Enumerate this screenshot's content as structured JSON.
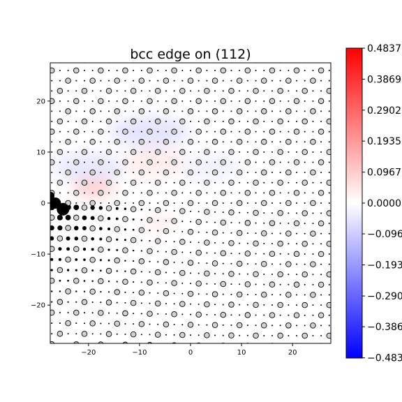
{
  "chart_data": {
    "type": "scatter",
    "title": "bcc edge on (112)",
    "xlim": [
      -27.5,
      27.5
    ],
    "ylim": [
      -27.5,
      27.5
    ],
    "x_ticks": [
      -20,
      -10,
      0,
      10,
      20
    ],
    "y_ticks": [
      -20,
      -10,
      0,
      10,
      20
    ],
    "x_tick_labels": [
      "−20",
      "−10",
      "0",
      "10",
      "20"
    ],
    "y_tick_labels": [
      "−20",
      "−10",
      "0",
      "10",
      "20"
    ],
    "grid": false,
    "lattice": {
      "row_spacing": 2.0,
      "column_spacing": 4.8,
      "open_circle_fill": "#d0d0d0",
      "small_dot_color": "#000000"
    },
    "dislocation_core": [
      -26.5,
      0.0
    ],
    "colorbar": {
      "cmap": "bwr",
      "min": -0.4837,
      "max": 0.4837,
      "ticks": [
        0.4837,
        0.3869,
        0.2902,
        0.1935,
        0.0967,
        0.0,
        -0.096,
        -0.193,
        -0.29,
        -0.386,
        -0.483
      ],
      "tick_labels": [
        "0.4837",
        "0.3869",
        "0.2902",
        "0.1935",
        "0.0967",
        "0.0000",
        "−0.096",
        "−0.193",
        "−0.290",
        "−0.386",
        "−0.483"
      ],
      "colors": {
        "max": "#ff0000",
        "mid": "#ffffff",
        "min": "#0000ff"
      }
    },
    "field_blobs": [
      {
        "x": -8,
        "y": 14,
        "rx": 8,
        "ry": 3,
        "value": -0.06
      },
      {
        "x": -20,
        "y": 7,
        "rx": 7,
        "ry": 3,
        "value": -0.05
      },
      {
        "x": 4,
        "y": 7,
        "rx": 6,
        "ry": 2.5,
        "value": -0.03
      },
      {
        "x": -7,
        "y": 8,
        "rx": 6,
        "ry": 3,
        "value": 0.04
      },
      {
        "x": -19,
        "y": 3,
        "rx": 4,
        "ry": 2,
        "value": 0.1
      },
      {
        "x": -6,
        "y": -4,
        "rx": 4,
        "ry": 2,
        "value": 0.03
      }
    ]
  }
}
